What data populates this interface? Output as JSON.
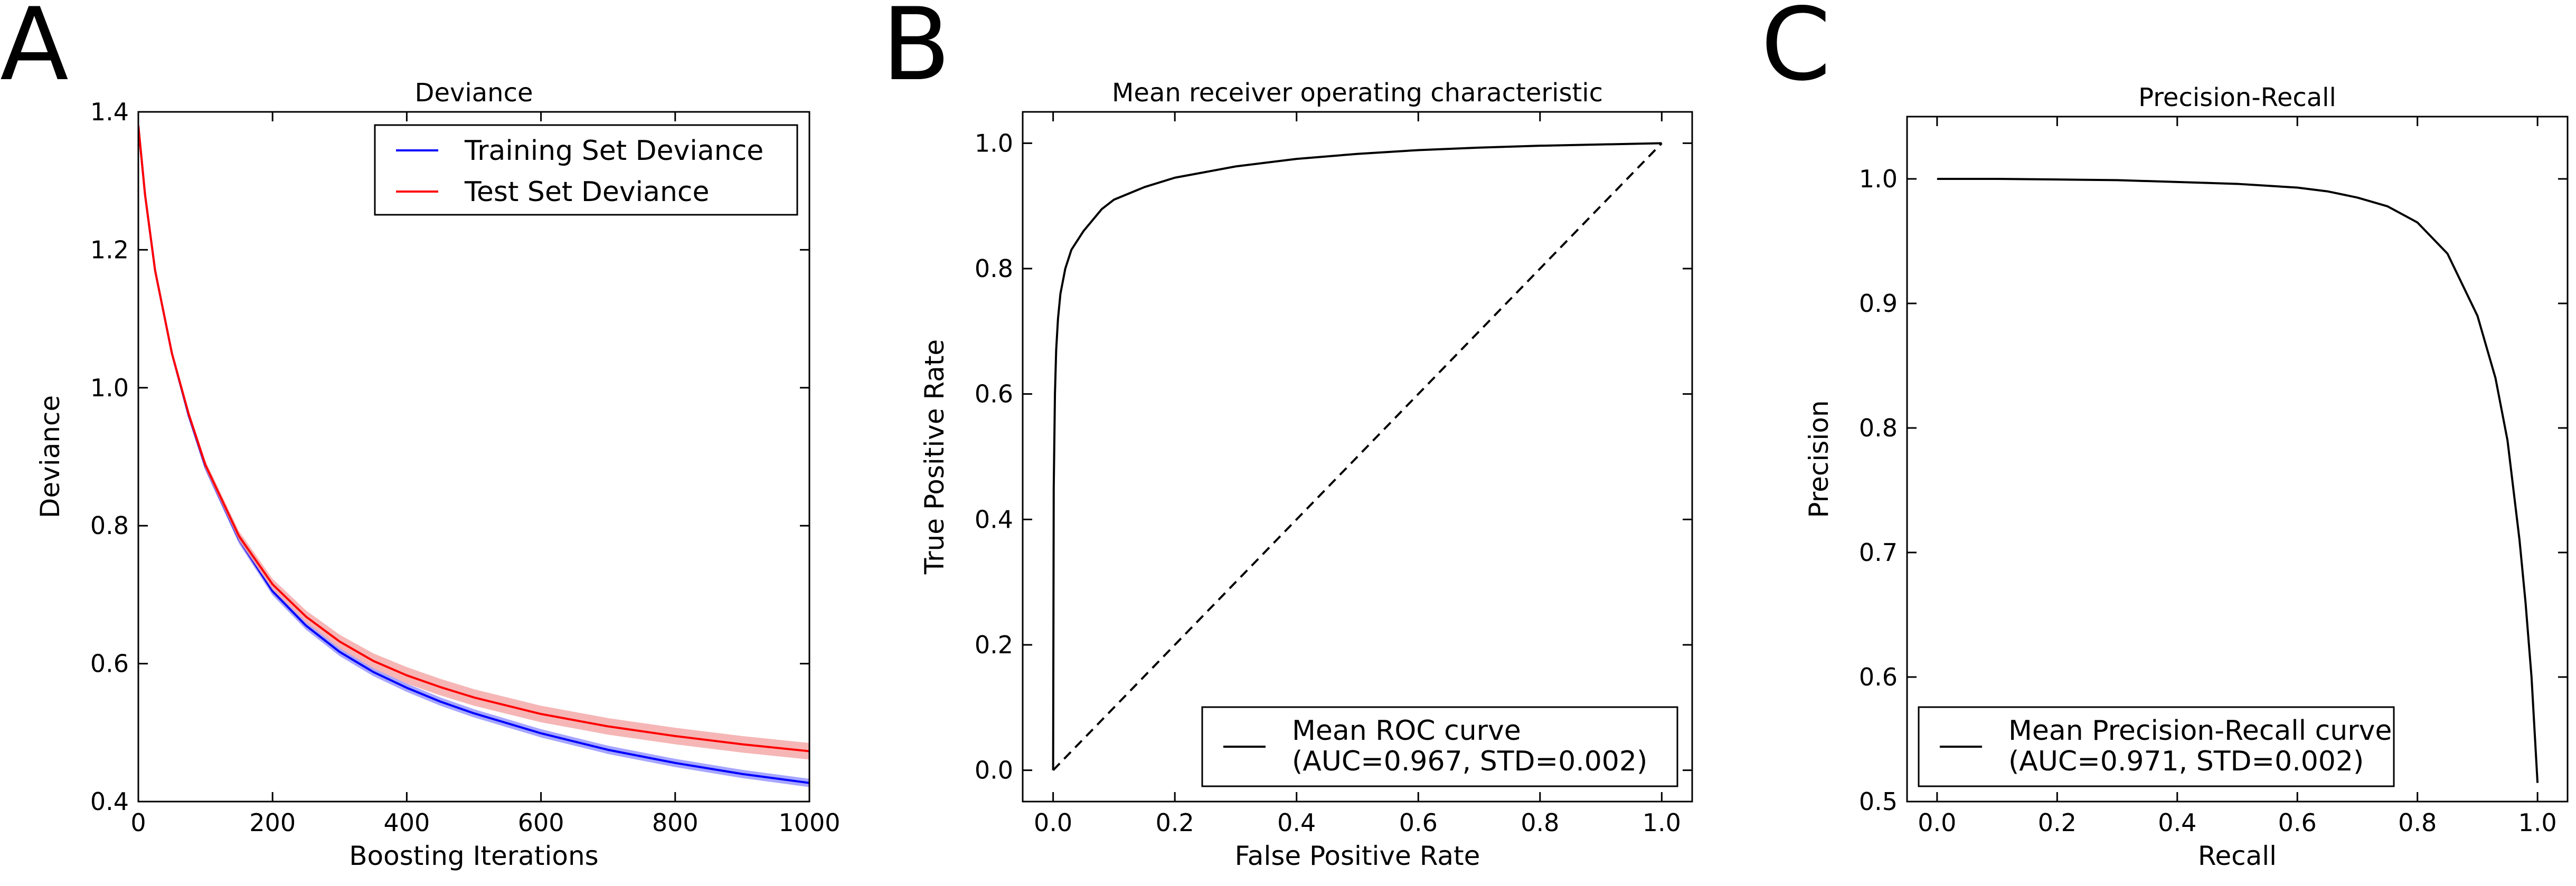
{
  "chart_data": [
    {
      "panel": "A",
      "type": "line",
      "title": "Deviance",
      "xlabel": "Boosting Iterations",
      "ylabel": "Deviance",
      "xlim": [
        0,
        1000
      ],
      "ylim": [
        0.4,
        1.4
      ],
      "xticks": [
        0,
        200,
        400,
        600,
        800,
        1000
      ],
      "yticks": [
        0.4,
        0.6,
        0.8,
        1.0,
        1.2,
        1.4
      ],
      "xtick_labels": [
        "0",
        "200",
        "400",
        "600",
        "800",
        "1000"
      ],
      "ytick_labels": [
        "0.4",
        "0.6",
        "0.8",
        "1.0",
        "1.2",
        "1.4"
      ],
      "legend_position": "top-right",
      "series": [
        {
          "name": "Training Set Deviance",
          "color": "#0000ff",
          "x": [
            0,
            10,
            25,
            50,
            75,
            100,
            150,
            200,
            250,
            300,
            350,
            400,
            450,
            500,
            600,
            700,
            800,
            900,
            1000
          ],
          "y": [
            1.38,
            1.28,
            1.17,
            1.05,
            0.96,
            0.885,
            0.78,
            0.705,
            0.655,
            0.617,
            0.588,
            0.565,
            0.545,
            0.528,
            0.499,
            0.475,
            0.456,
            0.44,
            0.427
          ],
          "band": [
            0.0,
            0.0,
            0.003,
            0.004,
            0.004,
            0.005,
            0.006,
            0.006,
            0.006,
            0.006,
            0.006,
            0.006,
            0.006,
            0.006,
            0.006,
            0.006,
            0.006,
            0.006,
            0.006
          ]
        },
        {
          "name": "Test Set Deviance",
          "color": "#ff0000",
          "band_color": "#f4a9a9",
          "x": [
            0,
            10,
            25,
            50,
            75,
            100,
            150,
            200,
            250,
            300,
            350,
            400,
            450,
            500,
            600,
            700,
            800,
            900,
            1000
          ],
          "y": [
            1.38,
            1.28,
            1.17,
            1.05,
            0.962,
            0.888,
            0.785,
            0.715,
            0.668,
            0.632,
            0.604,
            0.583,
            0.566,
            0.551,
            0.527,
            0.509,
            0.495,
            0.483,
            0.473
          ],
          "band": [
            0.0,
            0.0,
            0.003,
            0.004,
            0.005,
            0.006,
            0.007,
            0.008,
            0.009,
            0.01,
            0.011,
            0.012,
            0.012,
            0.012,
            0.012,
            0.012,
            0.012,
            0.012,
            0.012
          ]
        }
      ]
    },
    {
      "panel": "B",
      "type": "line",
      "title": "Mean receiver operating characteristic",
      "xlabel": "False Positive Rate",
      "ylabel": "True Positive Rate",
      "xlim": [
        -0.05,
        1.05
      ],
      "ylim": [
        -0.05,
        1.05
      ],
      "xticks": [
        0.0,
        0.2,
        0.4,
        0.6,
        0.8,
        1.0
      ],
      "yticks": [
        0.0,
        0.2,
        0.4,
        0.6,
        0.8,
        1.0
      ],
      "xtick_labels": [
        "0.0",
        "0.2",
        "0.4",
        "0.6",
        "0.8",
        "1.0"
      ],
      "ytick_labels": [
        "0.0",
        "0.2",
        "0.4",
        "0.6",
        "0.8",
        "1.0"
      ],
      "legend_position": "lower-right",
      "legend_lines": [
        "Mean ROC curve",
        "(AUC=0.967, STD=0.002)"
      ],
      "series": [
        {
          "name": "Mean ROC curve",
          "color": "#000000",
          "x": [
            0.0,
            0.001,
            0.003,
            0.005,
            0.008,
            0.012,
            0.02,
            0.03,
            0.05,
            0.08,
            0.1,
            0.15,
            0.2,
            0.3,
            0.4,
            0.5,
            0.6,
            0.7,
            0.8,
            0.9,
            1.0
          ],
          "y": [
            0.0,
            0.45,
            0.6,
            0.67,
            0.72,
            0.76,
            0.8,
            0.83,
            0.86,
            0.895,
            0.91,
            0.93,
            0.945,
            0.963,
            0.975,
            0.983,
            0.989,
            0.993,
            0.996,
            0.998,
            1.0
          ]
        },
        {
          "name": "",
          "color": "#000000",
          "dashed": true,
          "x": [
            0.0,
            1.0
          ],
          "y": [
            0.0,
            1.0
          ]
        }
      ]
    },
    {
      "panel": "C",
      "type": "line",
      "title": "Precision-Recall",
      "xlabel": "Recall",
      "ylabel": "Precision",
      "xlim": [
        -0.05,
        1.05
      ],
      "ylim": [
        0.5,
        1.05
      ],
      "xticks": [
        0.0,
        0.2,
        0.4,
        0.6,
        0.8,
        1.0
      ],
      "yticks": [
        0.5,
        0.6,
        0.7,
        0.8,
        0.9,
        1.0
      ],
      "xtick_labels": [
        "0.0",
        "0.2",
        "0.4",
        "0.6",
        "0.8",
        "1.0"
      ],
      "ytick_labels": [
        "0.5",
        "0.6",
        "0.7",
        "0.8",
        "0.9",
        "1.0"
      ],
      "legend_position": "lower-left",
      "legend_lines": [
        "Mean Precision-Recall curve",
        "(AUC=0.971, STD=0.002)"
      ],
      "series": [
        {
          "name": "Mean Precision-Recall curve",
          "color": "#000000",
          "x": [
            0.0,
            0.1,
            0.2,
            0.3,
            0.4,
            0.5,
            0.6,
            0.65,
            0.7,
            0.75,
            0.8,
            0.85,
            0.9,
            0.93,
            0.95,
            0.97,
            0.98,
            0.99,
            1.0
          ],
          "y": [
            1.0,
            1.0,
            0.9995,
            0.999,
            0.9975,
            0.996,
            0.993,
            0.99,
            0.985,
            0.978,
            0.965,
            0.94,
            0.89,
            0.84,
            0.79,
            0.71,
            0.66,
            0.6,
            0.515
          ]
        }
      ]
    }
  ]
}
